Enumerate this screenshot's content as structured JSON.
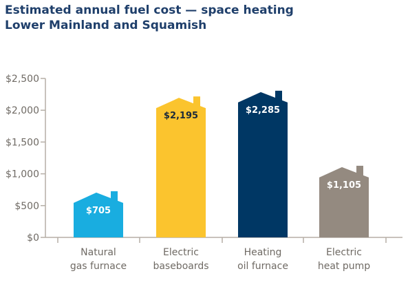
{
  "chart_data": {
    "type": "bar",
    "title": "Estimated annual fuel cost — space heating",
    "subtitle": "Lower Mainland and Squamish",
    "categories": [
      [
        "Natural",
        "gas furnace"
      ],
      [
        "Electric",
        "baseboards"
      ],
      [
        "Heating",
        "oil furnace"
      ],
      [
        "Electric",
        "heat pump"
      ]
    ],
    "values": [
      705,
      2195,
      2285,
      1105
    ],
    "value_labels": [
      "$705",
      "$2,195",
      "$2,285",
      "$1,105"
    ],
    "bar_colors": [
      "#19ade0",
      "#fbc42e",
      "#003764",
      "#948a80"
    ],
    "label_colors": [
      "#ffffff",
      "#1b2a3a",
      "#ffffff",
      "#ffffff"
    ],
    "ylim": [
      0,
      2500
    ],
    "yticks": [
      0,
      500,
      1000,
      1500,
      2000,
      2500
    ],
    "ytick_labels": [
      "$0",
      "$500",
      "$1,000",
      "$1,500",
      "$2,000",
      "$2,500"
    ],
    "xlabel": "",
    "ylabel": "",
    "grid": false,
    "bar_shape": "house"
  }
}
